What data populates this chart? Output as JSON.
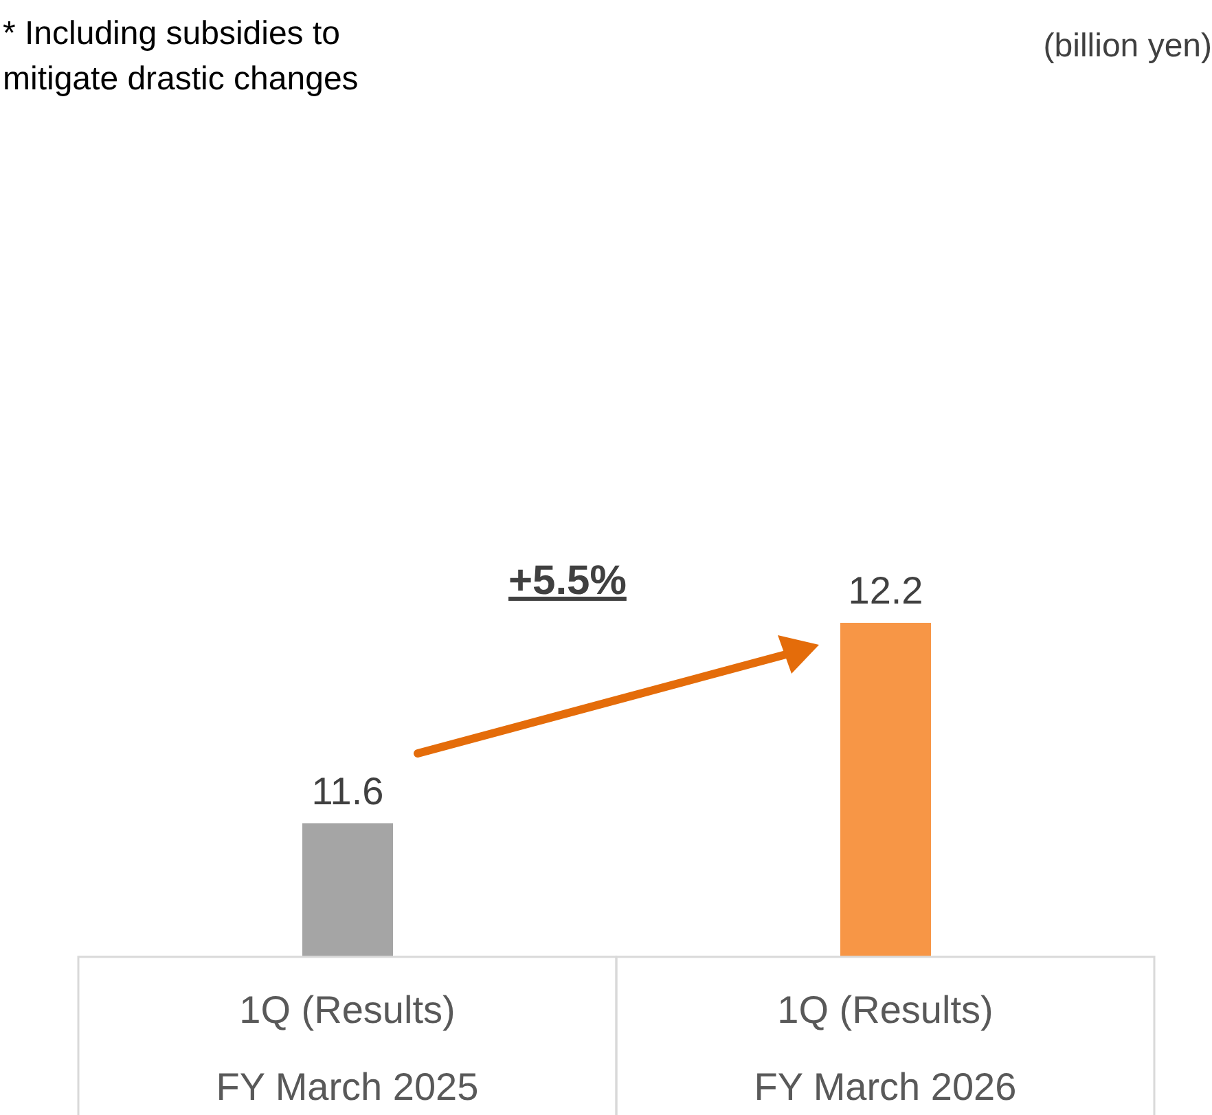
{
  "chart_data": {
    "type": "bar",
    "categories": [
      "1Q (Results)\nFY March 2025",
      "1Q (Results)\nFY March 2026"
    ],
    "values": [
      11.6,
      12.2
    ],
    "colors": [
      "#a5a5a5",
      "#f79646"
    ],
    "ylim": [
      11.2,
      12.2
    ],
    "data_labels": true,
    "annotations": [
      "* Including subsidies to\nmitigate drastic changes",
      "(billion yen)",
      "+5.5%"
    ]
  }
}
